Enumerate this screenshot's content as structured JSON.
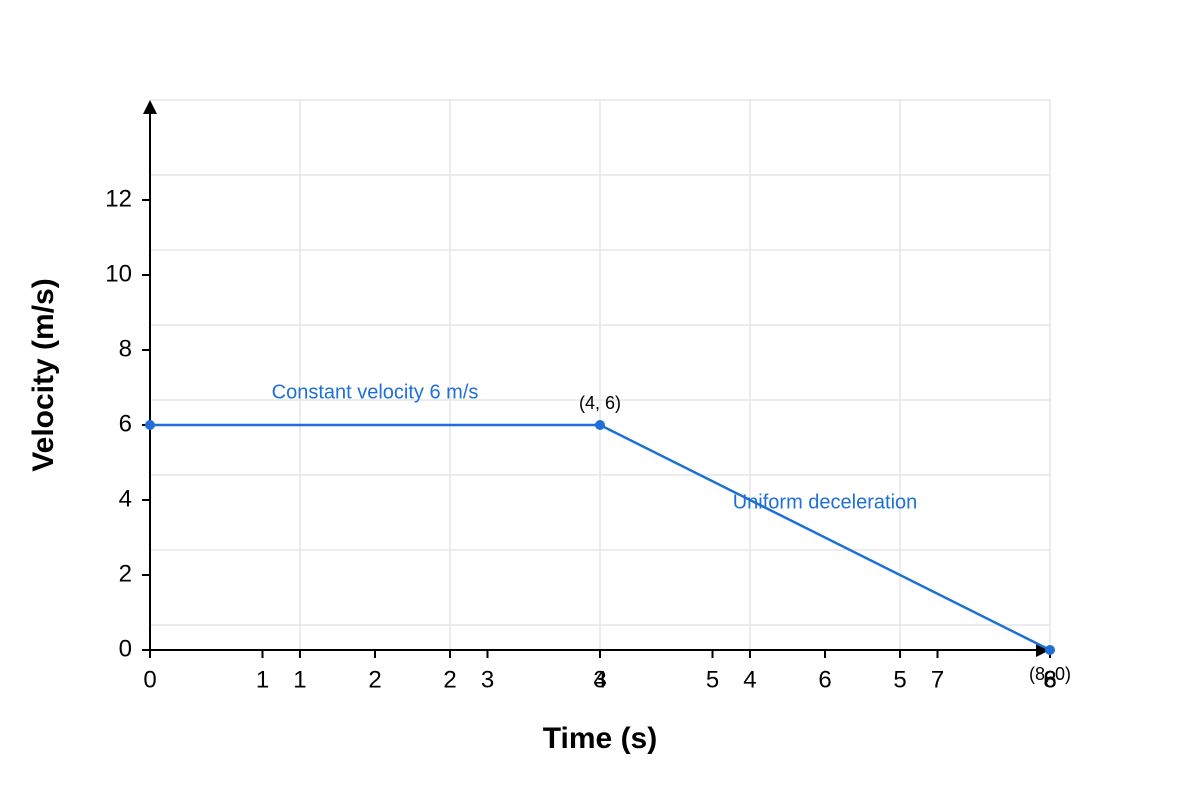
{
  "chart_data": {
    "type": "line",
    "x_label": "Time (s)",
    "y_label": "Velocity (m/s)",
    "x": [
      0,
      4,
      8
    ],
    "series": [
      {
        "color": "#1f6fd6",
        "values": [
          6,
          6,
          0
        ]
      }
    ],
    "point_labels": [
      null,
      "(4, 6)",
      "(8, 0)"
    ],
    "annotations": [
      "Constant velocity 6 m/s",
      "Uniform deceleration"
    ],
    "xlim": [
      0,
      8
    ],
    "ylim": [
      0,
      14.667
    ],
    "xticks": [
      0,
      1,
      2,
      3,
      4,
      5,
      6,
      7,
      8
    ],
    "xticks_secondary": [
      {
        "value": 1.333,
        "label": "1"
      },
      {
        "value": 2.667,
        "label": "2"
      },
      {
        "value": 4,
        "label": "3"
      },
      {
        "value": 5.333,
        "label": "4"
      },
      {
        "value": 6.667,
        "label": "5"
      },
      {
        "value": 8,
        "label": "6"
      }
    ],
    "yticks": [
      0,
      2,
      4,
      6,
      8,
      10,
      12
    ],
    "ygrid": [
      0.667,
      2.667,
      4.667,
      6.667,
      8.667,
      10.667,
      12.667,
      14.667
    ],
    "grid": true
  }
}
